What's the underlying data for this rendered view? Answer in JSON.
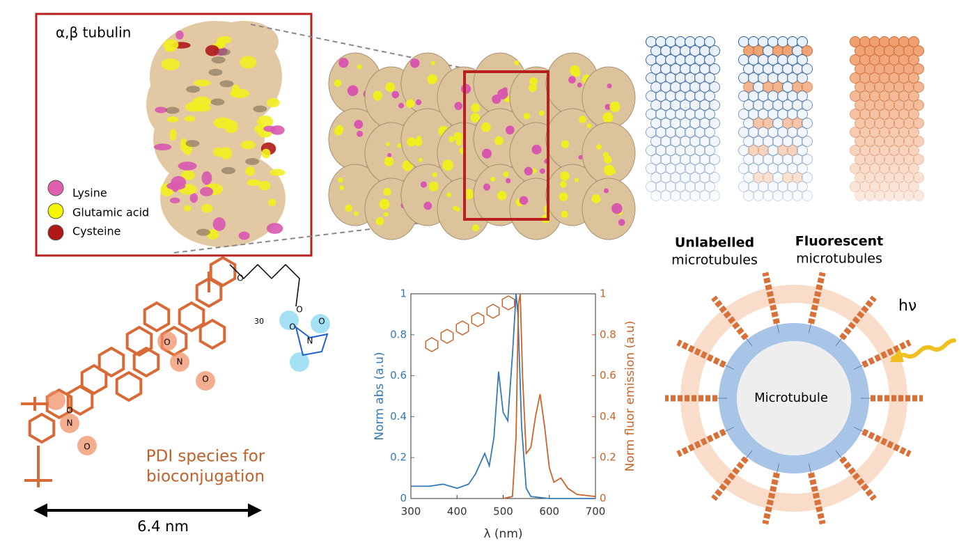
{
  "tubulin_panel": {
    "title": "α,β tubulin",
    "legend": [
      "Lysine",
      "Glutamic acid",
      "Cysteine"
    ]
  },
  "microtubule_panel": {
    "unlabelled": {
      "bold": "Unlabelled",
      "text": "microtubules"
    },
    "fluorescent": {
      "bold": "Fluorescent",
      "text": "microtubules"
    }
  },
  "molecule_panel": {
    "caption": [
      "PDI species for",
      "bioconjugation"
    ],
    "scale": "6.4 nm",
    "atoms": [
      "O",
      "N",
      "O",
      "O",
      "N",
      "O",
      "O",
      "O",
      "O",
      "N",
      "O",
      "30"
    ]
  },
  "ring_panel": {
    "label": "Microtubule",
    "light": "hν"
  },
  "chart_data": {
    "type": "line",
    "xlabel": "λ (nm)",
    "ylabel": "Norm abs (a.u)",
    "y2label": "Norm fluor emission (a.u)",
    "xlim": [
      300,
      700
    ],
    "xticks": [
      300,
      400,
      500,
      600,
      700
    ],
    "ylim": [
      0,
      1
    ],
    "yticks": [
      0,
      0.2,
      0.4,
      0.6,
      0.8,
      1
    ],
    "y2lim": [
      0,
      1
    ],
    "y2ticks": [
      0,
      0.2,
      0.4,
      0.6,
      0.8,
      1
    ],
    "series": [
      {
        "name": "Norm abs",
        "color": "#3478b4",
        "axis": "y",
        "x": [
          300,
          340,
          370,
          400,
          425,
          440,
          450,
          460,
          470,
          480,
          490,
          500,
          510,
          520,
          528,
          532,
          540,
          550,
          560,
          600,
          700
        ],
        "values": [
          0.06,
          0.06,
          0.07,
          0.05,
          0.07,
          0.12,
          0.17,
          0.22,
          0.16,
          0.3,
          0.62,
          0.42,
          0.38,
          0.7,
          1.0,
          0.9,
          0.35,
          0.05,
          0.01,
          0,
          0
        ]
      },
      {
        "name": "Norm fluor emission",
        "color": "#c8642a",
        "axis": "y2",
        "x": [
          500,
          520,
          528,
          533,
          537,
          542,
          550,
          560,
          570,
          580,
          590,
          600,
          610,
          625,
          640,
          660,
          700
        ],
        "values": [
          0,
          0.01,
          0.3,
          0.95,
          1.0,
          0.6,
          0.22,
          0.25,
          0.4,
          0.51,
          0.35,
          0.15,
          0.08,
          0.1,
          0.05,
          0.02,
          0.01
        ]
      }
    ]
  }
}
